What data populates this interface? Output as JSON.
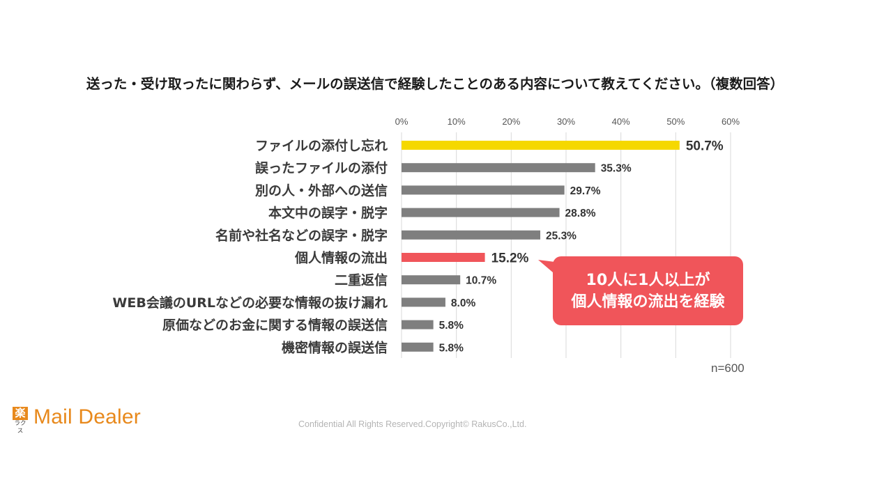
{
  "chart_data": {
    "type": "bar",
    "orientation": "horizontal",
    "title": "送った・受け取ったに関わらず、メールの誤送信で経験したことのある内容について教えてください。（複数回答）",
    "categories": [
      "ファイルの添付し忘れ",
      "誤ったファイルの添付",
      "別の人・外部への送信",
      "本文中の誤字・脱字",
      "名前や社名などの誤字・脱字",
      "個人情報の流出",
      "二重返信",
      "WEB会議のURLなどの必要な情報の抜け漏れ",
      "原価などのお金に関する情報の誤送信",
      "機密情報の誤送信"
    ],
    "values": [
      50.7,
      35.3,
      29.7,
      28.8,
      25.3,
      15.2,
      10.7,
      8.0,
      5.8,
      5.8
    ],
    "value_labels": [
      "50.7%",
      "35.3%",
      "29.7%",
      "28.8%",
      "25.3%",
      "15.2%",
      "10.7%",
      "8.0%",
      "5.8%",
      "5.8%"
    ],
    "bar_colors": [
      "#f5d800",
      "#7f7f7f",
      "#7f7f7f",
      "#7f7f7f",
      "#7f7f7f",
      "#f0555a",
      "#7f7f7f",
      "#7f7f7f",
      "#7f7f7f",
      "#7f7f7f"
    ],
    "label_colors": [
      "#ecd21c",
      "#333333",
      "#333333",
      "#333333",
      "#333333",
      "#c8161e",
      "#333333",
      "#333333",
      "#333333",
      "#333333"
    ],
    "xlim": [
      0,
      60
    ],
    "x_ticks": [
      0,
      10,
      20,
      30,
      40,
      50,
      60
    ],
    "x_tick_labels": [
      "0%",
      "10%",
      "20%",
      "30%",
      "40%",
      "50%",
      "60%"
    ],
    "x_axis_position": "top",
    "grid": true,
    "annotation": {
      "lines": [
        "10人に1人以上が",
        "個人情報の流出を経験"
      ],
      "color": "#f0555a",
      "points_to": "個人情報の流出"
    },
    "sample_size": "n=600"
  },
  "footer": {
    "logo_mark": "楽",
    "logo_mark_reading": "ラクス",
    "logo_text": "Mail Dealer",
    "logo_color": "#e8891c",
    "copyright": "Confidential All Rights Reserved.Copyright© RakusCo.,Ltd."
  }
}
